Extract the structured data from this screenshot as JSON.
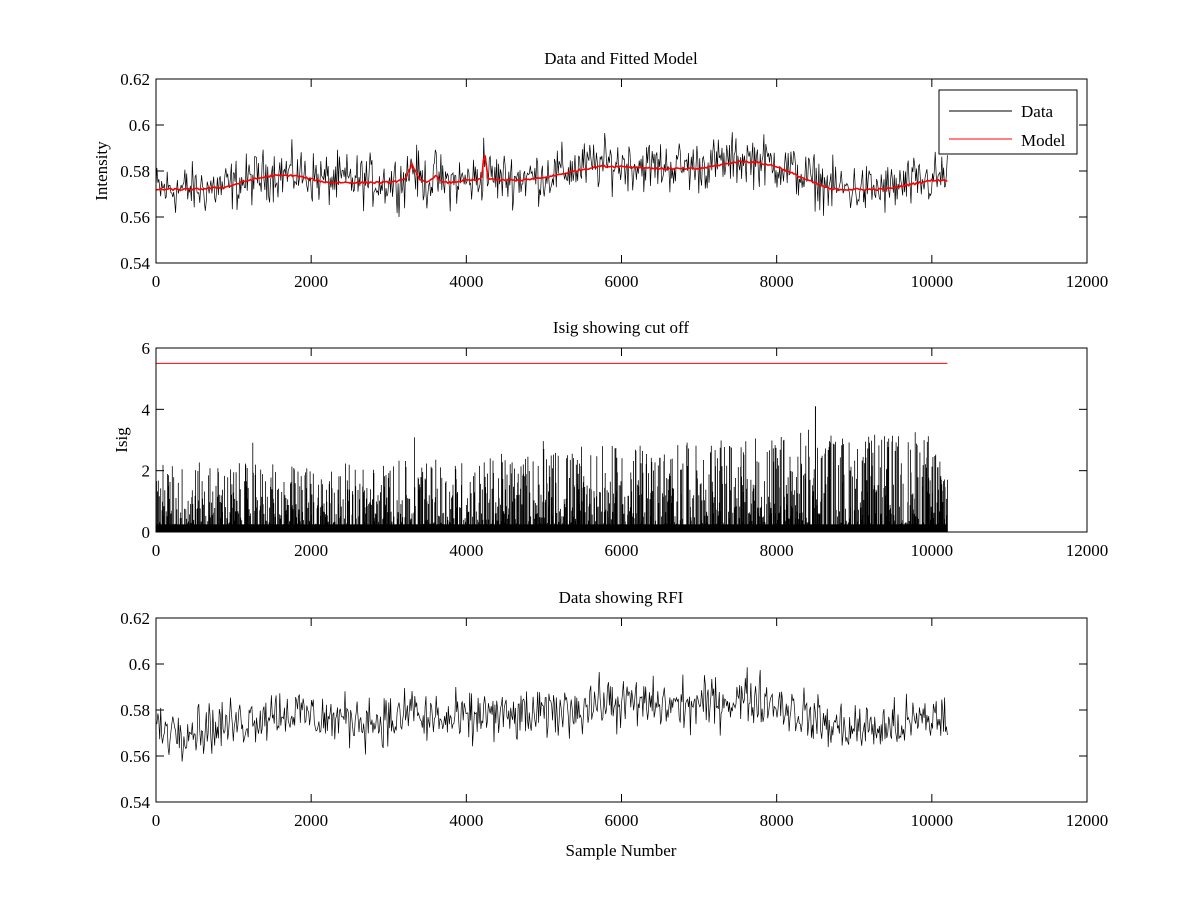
{
  "figure": {
    "background": "#ffffff",
    "data_color": "#000000",
    "model_color": "#ff0000"
  },
  "chart_data": [
    {
      "type": "line",
      "title": "Data and Fitted Model",
      "xlabel": "",
      "ylabel": "Intensity",
      "xlim": [
        0,
        12000
      ],
      "ylim": [
        0.54,
        0.62
      ],
      "xticks": [
        0,
        2000,
        4000,
        6000,
        8000,
        10000,
        12000
      ],
      "xtick_labels": [
        "0",
        "2000",
        "4000",
        "6000",
        "8000",
        "10000",
        "12000"
      ],
      "yticks": [
        0.54,
        0.56,
        0.58,
        0.6,
        0.62
      ],
      "ytick_labels": [
        "0.54",
        "0.56",
        "0.58",
        "0.6",
        "0.62"
      ],
      "grid": false,
      "legend": {
        "position": "top-right",
        "entries": [
          "Data",
          "Model"
        ]
      },
      "series": [
        {
          "name": "Data",
          "color": "#000000",
          "style": "noisy",
          "noise": 0.0055,
          "x": [
            0,
            500,
            900,
            1200,
            1500,
            1800,
            2200,
            2600,
            3000,
            3200,
            3300,
            3400,
            3500,
            3600,
            3700,
            3800,
            4000,
            4150,
            4200,
            4230,
            4280,
            4400,
            4700,
            5000,
            5400,
            5700,
            6000,
            6500,
            7000,
            7500,
            7700,
            8000,
            8400,
            8700,
            9000,
            9400,
            9700,
            10000,
            10200
          ],
          "y": [
            0.572,
            0.572,
            0.573,
            0.576,
            0.579,
            0.579,
            0.576,
            0.576,
            0.575,
            0.576,
            0.583,
            0.576,
            0.575,
            0.578,
            0.575,
            0.575,
            0.576,
            0.576,
            0.577,
            0.588,
            0.578,
            0.577,
            0.577,
            0.578,
            0.581,
            0.583,
            0.583,
            0.582,
            0.582,
            0.585,
            0.585,
            0.583,
            0.577,
            0.573,
            0.572,
            0.572,
            0.574,
            0.576,
            0.578
          ]
        },
        {
          "name": "Model",
          "color": "#ff0000",
          "style": "smooth",
          "x": [
            0,
            500,
            900,
            1200,
            1500,
            1800,
            2200,
            2600,
            3000,
            3200,
            3300,
            3400,
            3500,
            3600,
            3700,
            3800,
            4000,
            4150,
            4200,
            4230,
            4280,
            4400,
            4700,
            5000,
            5400,
            5700,
            6000,
            6500,
            7000,
            7500,
            7700,
            8000,
            8400,
            8700,
            9000,
            9400,
            9700,
            10000,
            10200
          ],
          "y": [
            0.572,
            0.572,
            0.573,
            0.576,
            0.578,
            0.578,
            0.575,
            0.575,
            0.575,
            0.576,
            0.583,
            0.576,
            0.575,
            0.578,
            0.575,
            0.575,
            0.576,
            0.576,
            0.577,
            0.589,
            0.577,
            0.576,
            0.576,
            0.577,
            0.58,
            0.582,
            0.582,
            0.581,
            0.581,
            0.584,
            0.584,
            0.582,
            0.576,
            0.572,
            0.572,
            0.572,
            0.574,
            0.576,
            0.576
          ]
        }
      ]
    },
    {
      "type": "line",
      "title": "Isig showing cut off",
      "xlabel": "",
      "ylabel": "Isig",
      "xlim": [
        0,
        12000
      ],
      "ylim": [
        0,
        6
      ],
      "xticks": [
        0,
        2000,
        4000,
        6000,
        8000,
        10000,
        12000
      ],
      "xtick_labels": [
        "0",
        "2000",
        "4000",
        "6000",
        "8000",
        "10000",
        "12000"
      ],
      "yticks": [
        0,
        2,
        4,
        6
      ],
      "ytick_labels": [
        "0",
        "2",
        "4",
        "6"
      ],
      "grid": false,
      "series": [
        {
          "color": "#000000",
          "style": "spikes",
          "x": [
            0,
            2000,
            4000,
            5000,
            6000,
            7000,
            8000,
            8500,
            9000,
            10000,
            10200
          ],
          "y": [
            2.2,
            2.1,
            2.3,
            2.6,
            2.7,
            2.8,
            3.0,
            3.3,
            3.0,
            3.2,
            3.3
          ],
          "max": 4.1
        },
        {
          "color": "#ff0000",
          "style": "flat",
          "x": [
            0,
            10200
          ],
          "y": [
            5.5,
            5.5
          ]
        }
      ]
    },
    {
      "type": "line",
      "title": "Data showing RFI",
      "xlabel": "Sample Number",
      "ylabel": "",
      "xlim": [
        0,
        12000
      ],
      "ylim": [
        0.54,
        0.62
      ],
      "xticks": [
        0,
        2000,
        4000,
        6000,
        8000,
        10000,
        12000
      ],
      "xtick_labels": [
        "0",
        "2000",
        "4000",
        "6000",
        "8000",
        "10000",
        "12000"
      ],
      "yticks": [
        0.54,
        0.56,
        0.58,
        0.6,
        0.62
      ],
      "ytick_labels": [
        "0.54",
        "0.56",
        "0.58",
        "0.6",
        "0.62"
      ],
      "grid": false,
      "series": [
        {
          "color": "#000000",
          "style": "noisy",
          "noise": 0.0055,
          "x": [
            0,
            500,
            900,
            1200,
            1500,
            1800,
            2200,
            2600,
            3000,
            3200,
            3300,
            3400,
            3500,
            3600,
            3700,
            3800,
            4000,
            4150,
            4200,
            4230,
            4280,
            4400,
            4700,
            5000,
            5400,
            5700,
            6000,
            6500,
            7000,
            7500,
            7700,
            8000,
            8400,
            8700,
            9000,
            9400,
            9700,
            10000,
            10200
          ],
          "y": [
            0.572,
            0.572,
            0.573,
            0.576,
            0.579,
            0.579,
            0.576,
            0.576,
            0.575,
            0.576,
            0.583,
            0.576,
            0.575,
            0.578,
            0.575,
            0.575,
            0.576,
            0.576,
            0.577,
            0.584,
            0.578,
            0.577,
            0.577,
            0.578,
            0.581,
            0.583,
            0.583,
            0.582,
            0.582,
            0.585,
            0.585,
            0.583,
            0.577,
            0.573,
            0.572,
            0.572,
            0.574,
            0.576,
            0.578
          ]
        }
      ]
    }
  ]
}
